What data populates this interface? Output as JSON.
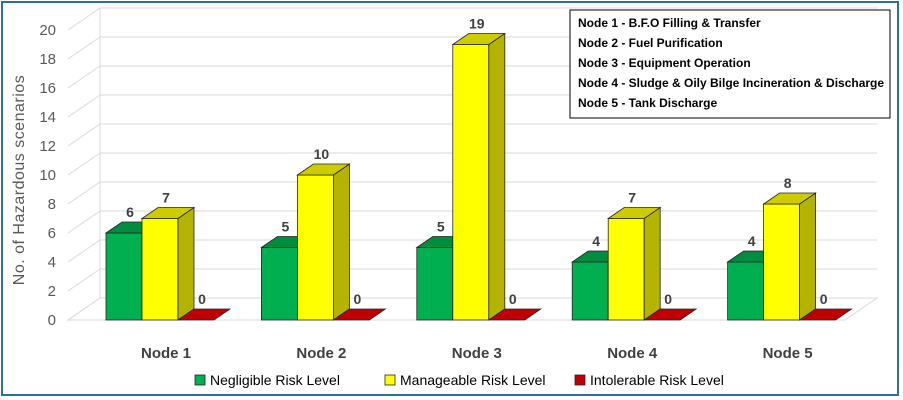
{
  "chart_data": {
    "type": "bar",
    "categories": [
      "Node 1",
      "Node 2",
      "Node 3",
      "Node 4",
      "Node 5"
    ],
    "series": [
      {
        "name": "Negligible Risk Level",
        "values": [
          6,
          5,
          5,
          4,
          4
        ],
        "color": "#00b050"
      },
      {
        "name": "Manageable Risk Level",
        "values": [
          7,
          10,
          19,
          7,
          8
        ],
        "color": "#ffff00"
      },
      {
        "name": "Intolerable Risk Level",
        "values": [
          0,
          0,
          0,
          0,
          0
        ],
        "color": "#c00000"
      }
    ],
    "ylabel": "No. of Hazardous scenarios",
    "ylim": [
      0,
      20
    ],
    "yticks": [
      "0",
      "2",
      "4",
      "6",
      "8",
      "10",
      "12",
      "14",
      "16",
      "18",
      "20"
    ],
    "grid": true,
    "legend_position": "bottom",
    "notes": [
      "Node 1 - B.F.O Filling & Transfer",
      "Node 2 - Fuel Purification",
      "Node 3 - Equipment Operation",
      "Node 4 - Sludge & Oily Bilge Incineration & Discharge",
      "Node 5 - Tank Discharge"
    ],
    "notes_position": "top-right"
  }
}
